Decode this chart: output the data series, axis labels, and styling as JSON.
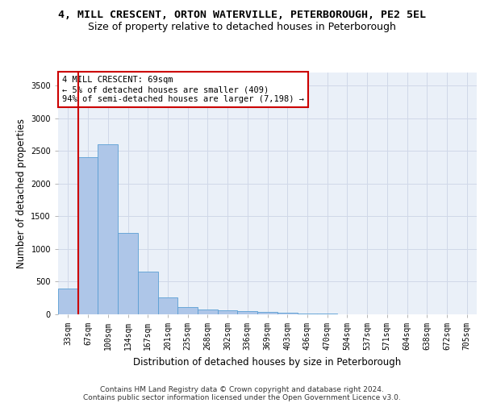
{
  "title_line1": "4, MILL CRESCENT, ORTON WATERVILLE, PETERBOROUGH, PE2 5EL",
  "title_line2": "Size of property relative to detached houses in Peterborough",
  "xlabel": "Distribution of detached houses by size in Peterborough",
  "ylabel": "Number of detached properties",
  "categories": [
    "33sqm",
    "67sqm",
    "100sqm",
    "134sqm",
    "167sqm",
    "201sqm",
    "235sqm",
    "268sqm",
    "302sqm",
    "336sqm",
    "369sqm",
    "403sqm",
    "436sqm",
    "470sqm",
    "504sqm",
    "537sqm",
    "571sqm",
    "604sqm",
    "638sqm",
    "672sqm",
    "705sqm"
  ],
  "bar_values": [
    400,
    2400,
    2600,
    1250,
    650,
    260,
    110,
    70,
    65,
    50,
    40,
    30,
    15,
    10,
    5,
    3,
    2,
    1,
    1,
    0,
    0
  ],
  "bar_color": "#aec6e8",
  "bar_edge_color": "#5a9fd4",
  "vline_color": "#cc0000",
  "annotation_text": "4 MILL CRESCENT: 69sqm\n← 5% of detached houses are smaller (409)\n94% of semi-detached houses are larger (7,198) →",
  "annotation_box_color": "#ffffff",
  "annotation_box_edge": "#cc0000",
  "ylim": [
    0,
    3700
  ],
  "yticks": [
    0,
    500,
    1000,
    1500,
    2000,
    2500,
    3000,
    3500
  ],
  "grid_color": "#d0d8e8",
  "background_color": "#eaf0f8",
  "footer_line1": "Contains HM Land Registry data © Crown copyright and database right 2024.",
  "footer_line2": "Contains public sector information licensed under the Open Government Licence v3.0.",
  "title_fontsize": 9.5,
  "subtitle_fontsize": 9,
  "tick_fontsize": 7,
  "label_fontsize": 8.5,
  "footer_fontsize": 6.5,
  "annotation_fontsize": 7.5
}
